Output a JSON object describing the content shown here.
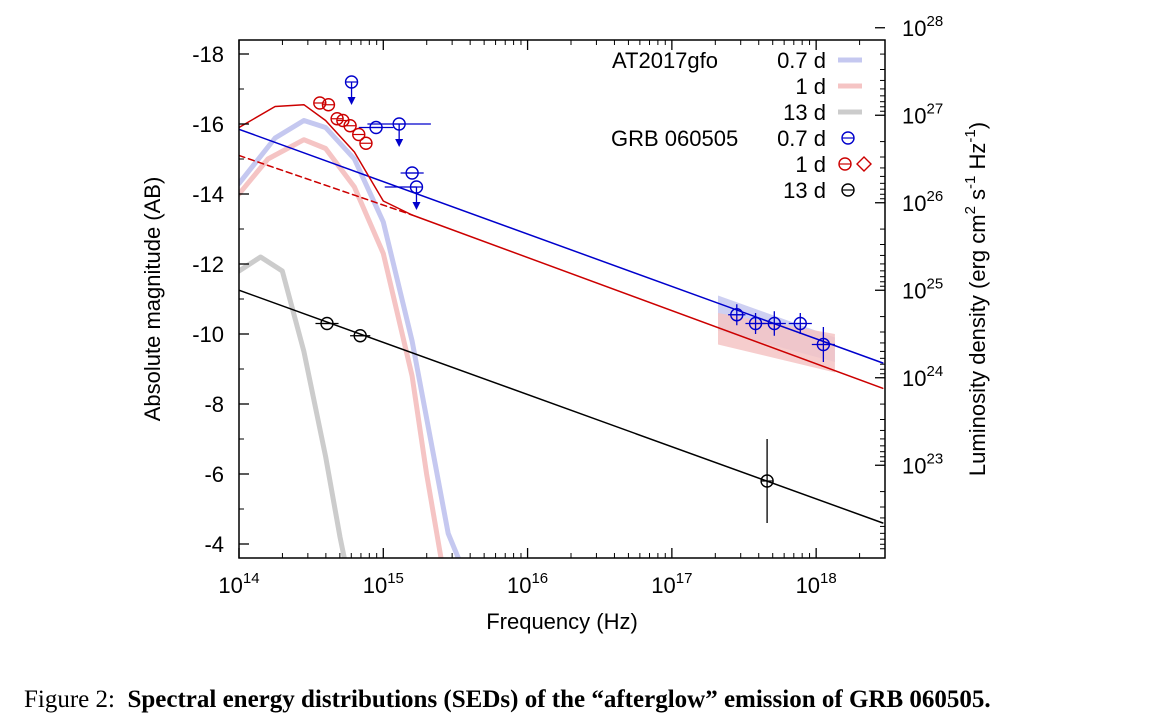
{
  "caption": {
    "label": "Figure 2:",
    "text": "Spectral energy distributions (SEDs) of the “afterglow” emission of GRB 060505."
  },
  "chart_data": {
    "type": "scatter",
    "title": "",
    "xlabel": "Frequency (Hz)",
    "ylabel_left": "Absolute magnitude (AB)",
    "ylabel_right_parts": [
      "Luminosity density (erg cm",
      "2",
      " s",
      "-1",
      " Hz",
      "-1",
      ")"
    ],
    "x_scale": "log",
    "xlim": [
      100000000000000.0,
      3e+18
    ],
    "ylim_left": [
      -3.6,
      -18.4
    ],
    "x_ticks": [
      {
        "base": "10",
        "exp": "14"
      },
      {
        "base": "10",
        "exp": "15"
      },
      {
        "base": "10",
        "exp": "16"
      },
      {
        "base": "10",
        "exp": "17"
      },
      {
        "base": "10",
        "exp": "18"
      }
    ],
    "x_tick_exponents": [
      14,
      15,
      16,
      17,
      18
    ],
    "y_ticks_left": [
      "-18",
      "-16",
      "-14",
      "-12",
      "-10",
      "-8",
      "-6",
      "-4"
    ],
    "y_tick_values_left": [
      -18,
      -16,
      -14,
      -12,
      -10,
      -8,
      -6,
      -4
    ],
    "y_ticks_right": [
      {
        "base": "10",
        "exp": "28"
      },
      {
        "base": "10",
        "exp": "27"
      },
      {
        "base": "10",
        "exp": "26"
      },
      {
        "base": "10",
        "exp": "25"
      },
      {
        "base": "10",
        "exp": "24"
      },
      {
        "base": "10",
        "exp": "23"
      }
    ],
    "y_tick_magnitudes_right": [
      -18.75,
      -16.25,
      -13.75,
      -11.25,
      -8.75,
      -6.25
    ],
    "legend": {
      "placement": "top-right",
      "entries": [
        {
          "group": "AT2017gfo",
          "label": "0.7 d",
          "kind": "band",
          "color": "#c5c8f0"
        },
        {
          "group": "",
          "label": "1 d",
          "kind": "band",
          "color": "#f5c4c4"
        },
        {
          "group": "",
          "label": "13 d",
          "kind": "band",
          "color": "#cccccc"
        },
        {
          "group": "GRB 060505",
          "label": "0.7 d",
          "kind": "circle",
          "color": "#0000cc"
        },
        {
          "group": "",
          "label": "1 d",
          "kind": "circle+diamond",
          "color": "#cc0000"
        },
        {
          "group": "",
          "label": "13 d",
          "kind": "circle",
          "color": "#000000"
        }
      ]
    },
    "models": [
      {
        "name": "AT2017gfo 0.7 d",
        "color": "#c5c8f0",
        "points": [
          [
            14.0,
            -14.3
          ],
          [
            14.25,
            -15.6
          ],
          [
            14.45,
            -16.1
          ],
          [
            14.6,
            -15.9
          ],
          [
            14.8,
            -15.0
          ],
          [
            15.0,
            -13.2
          ],
          [
            15.2,
            -9.8
          ],
          [
            15.35,
            -6.5
          ],
          [
            15.45,
            -4.3
          ],
          [
            15.52,
            -3.6
          ]
        ]
      },
      {
        "name": "AT2017gfo 1 d",
        "color": "#f5c4c4",
        "points": [
          [
            14.0,
            -14.0
          ],
          [
            14.2,
            -15.0
          ],
          [
            14.45,
            -15.55
          ],
          [
            14.6,
            -15.3
          ],
          [
            14.8,
            -14.2
          ],
          [
            15.0,
            -12.3
          ],
          [
            15.2,
            -8.8
          ],
          [
            15.3,
            -6.0
          ],
          [
            15.4,
            -3.6
          ]
        ]
      },
      {
        "name": "AT2017gfo 13 d",
        "color": "#cccccc",
        "points": [
          [
            14.0,
            -11.8
          ],
          [
            14.15,
            -12.2
          ],
          [
            14.3,
            -11.8
          ],
          [
            14.45,
            -9.5
          ],
          [
            14.6,
            -6.5
          ],
          [
            14.7,
            -4.2
          ],
          [
            14.73,
            -3.6
          ]
        ]
      },
      {
        "name": "GRB 060505 0.7 d power law",
        "color": "#0000cc",
        "points": [
          [
            14.0,
            -15.85
          ],
          [
            18.462,
            -9.17
          ]
        ]
      },
      {
        "name": "GRB 060505 1 d model",
        "color": "#cc0000",
        "points": [
          [
            14.0,
            -15.9
          ],
          [
            14.25,
            -16.5
          ],
          [
            14.45,
            -16.55
          ],
          [
            14.6,
            -16.1
          ],
          [
            14.8,
            -15.2
          ],
          [
            15.0,
            -13.8
          ],
          [
            15.2,
            -13.4
          ],
          [
            18.462,
            -8.45
          ]
        ]
      },
      {
        "name": "GRB 060505 1 d extrapolation",
        "color": "#cc0000",
        "dashed": true,
        "points": [
          [
            14.0,
            -15.1
          ],
          [
            15.2,
            -13.4
          ]
        ]
      },
      {
        "name": "GRB 060505 13 d power law",
        "color": "#000000",
        "points": [
          [
            14.0,
            -11.25
          ],
          [
            18.462,
            -4.6
          ]
        ]
      }
    ],
    "bands": [
      {
        "name": "X-ray 0.7 d",
        "color": "#c5c8f0",
        "polygon": [
          [
            17.32,
            -11.1
          ],
          [
            18.13,
            -9.9
          ],
          [
            18.13,
            -9.2
          ],
          [
            17.32,
            -10.1
          ]
        ]
      },
      {
        "name": "X-ray 1 d",
        "color": "#f5c4c4",
        "polygon": [
          [
            17.32,
            -10.6
          ],
          [
            18.13,
            -10.0
          ],
          [
            18.13,
            -8.9
          ],
          [
            17.32,
            -9.7
          ]
        ]
      }
    ],
    "series": [
      {
        "name": "GRB 060505 0.7 d",
        "color": "#0000cc",
        "marker": "circle",
        "points": [
          {
            "x": 14.78,
            "y": -17.2,
            "upper_limit": true
          },
          {
            "x": 14.95,
            "y": -15.9,
            "xerr": [
              0.12,
              0.12
            ]
          },
          {
            "x": 15.11,
            "y": -16.0,
            "xerr": [
              0.22,
              0.22
            ],
            "upper_limit": true
          },
          {
            "x": 15.2,
            "y": -14.6,
            "xerr": [
              0.08,
              0.08
            ]
          },
          {
            "x": 15.23,
            "y": -14.2,
            "xerr": [
              0.22,
              0.0
            ],
            "upper_limit": true
          },
          {
            "x": 17.45,
            "y": -10.55,
            "xerr": [
              0.06,
              0.06
            ],
            "yerr": 0.3
          },
          {
            "x": 17.58,
            "y": -10.3,
            "xerr": [
              0.07,
              0.07
            ],
            "yerr": 0.3
          },
          {
            "x": 17.71,
            "y": -10.3,
            "xerr": [
              0.08,
              0.08
            ],
            "yerr": 0.35
          },
          {
            "x": 17.89,
            "y": -10.3,
            "xerr": [
              0.08,
              0.08
            ],
            "yerr": 0.3
          },
          {
            "x": 18.05,
            "y": -9.7,
            "xerr": [
              0.08,
              0.08
            ],
            "yerr": 0.5
          }
        ]
      },
      {
        "name": "GRB 060505 1 d",
        "color": "#cc0000",
        "marker": "circle+diamond",
        "points": [
          {
            "x": 14.56,
            "y": -16.6
          },
          {
            "x": 14.62,
            "y": -16.55
          },
          {
            "x": 14.68,
            "y": -16.15
          },
          {
            "x": 14.72,
            "y": -16.1
          },
          {
            "x": 14.77,
            "y": -15.95
          },
          {
            "x": 14.83,
            "y": -15.7
          },
          {
            "x": 14.88,
            "y": -15.45
          }
        ]
      },
      {
        "name": "GRB 060505 13 d",
        "color": "#000000",
        "marker": "circle",
        "points": [
          {
            "x": 14.61,
            "y": -10.3,
            "xerr": [
              0.08,
              0.08
            ]
          },
          {
            "x": 14.84,
            "y": -9.95,
            "xerr": [
              0.07,
              0.07
            ]
          },
          {
            "x": 17.66,
            "y": -5.8,
            "yerr": 1.2
          }
        ]
      }
    ]
  }
}
